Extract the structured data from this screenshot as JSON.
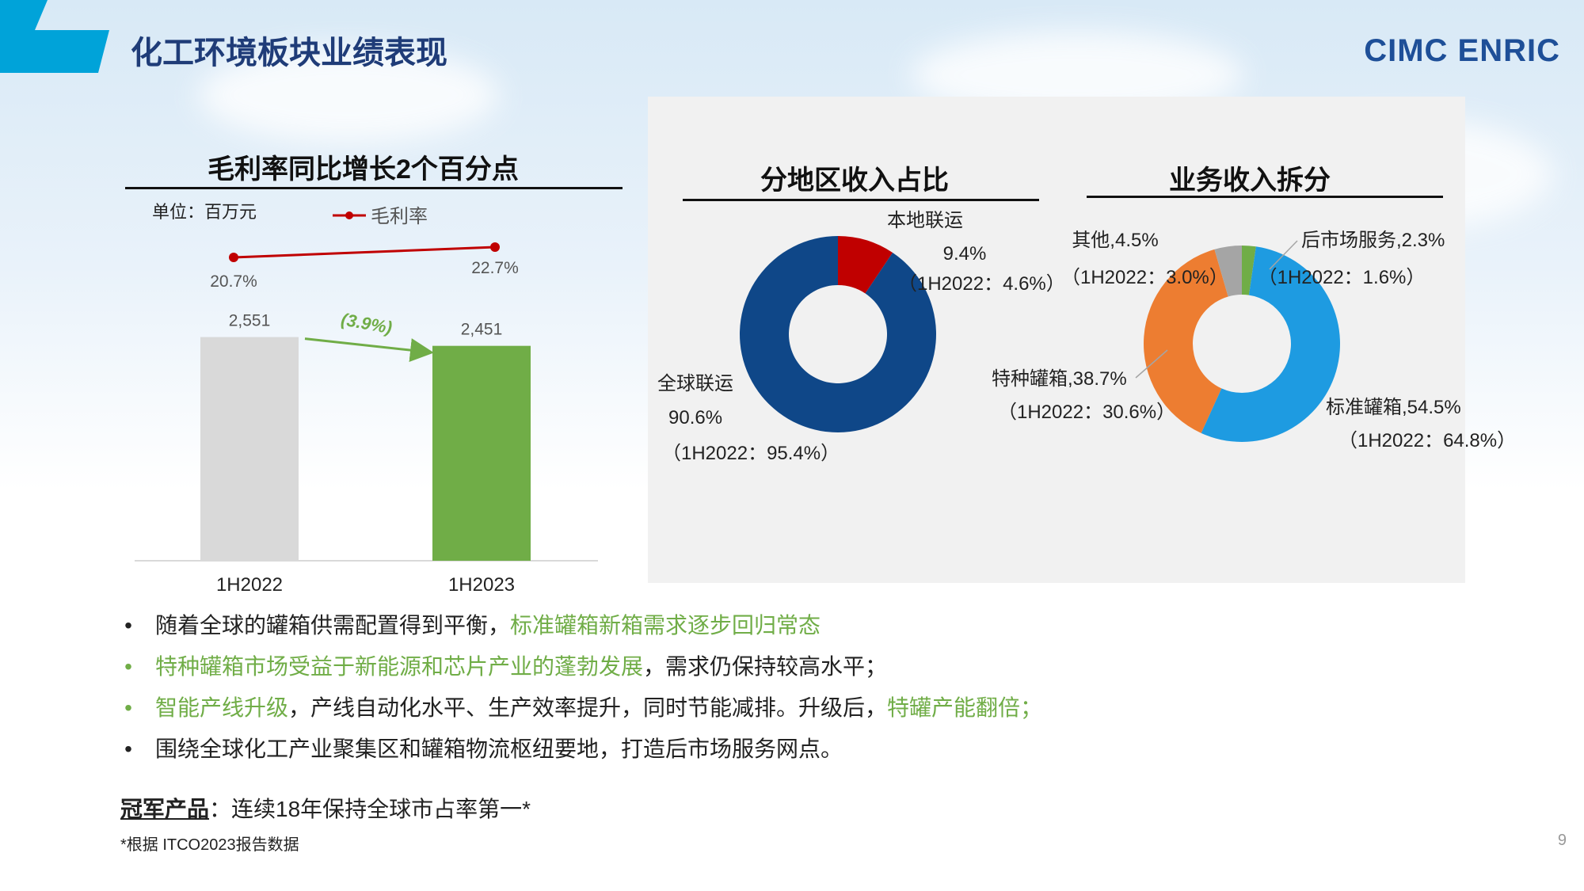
{
  "header": {
    "title": "化工环境板块业绩表现",
    "logo_text": "CIMC ENRIC",
    "accent_color": "#00a3d9",
    "title_color": "#1f3c78"
  },
  "left_chart": {
    "heading": "毛利率同比增长2个百分点",
    "unit_label": "单位：百万元",
    "change_label": "(3.9%)"
  },
  "right_panel": {
    "region_heading": "分地区收入占比",
    "business_heading": "业务收入拆分"
  },
  "chart_data": [
    {
      "type": "bar",
      "categories": [
        "1H2022",
        "1H2023"
      ],
      "values": [
        2551,
        2451
      ],
      "value_labels": [
        "2,551",
        "2,451"
      ],
      "colors": [
        "#d9d9d9",
        "#70ad47"
      ],
      "ylim": [
        0,
        3000
      ]
    },
    {
      "type": "line",
      "categories": [
        "1H2022",
        "1H2023"
      ],
      "series": [
        {
          "name": "毛利率",
          "values": [
            20.7,
            22.7
          ],
          "value_labels": [
            "20.7%",
            "22.7%"
          ],
          "color": "#c00000"
        }
      ]
    },
    {
      "type": "pie",
      "style": "donut",
      "slices": [
        {
          "label": "本地联运",
          "value": 9.4,
          "value_label": "9.4%",
          "note": "（1H2022：4.6%）",
          "color": "#c00000"
        },
        {
          "label": "全球联运",
          "value": 90.6,
          "value_label": "90.6%",
          "note": "（1H2022：95.4%）",
          "color": "#0f4788"
        }
      ]
    },
    {
      "type": "pie",
      "style": "donut",
      "slices": [
        {
          "label": "后市场服务,2.3%",
          "value": 2.3,
          "note": "（1H2022：1.6%）",
          "color": "#70ad47"
        },
        {
          "label": "标准罐箱,54.5%",
          "value": 54.5,
          "note": "（1H2022：64.8%）",
          "color": "#1e9be1"
        },
        {
          "label": "特种罐箱,38.7%",
          "value": 38.7,
          "note": "（1H2022：30.6%）",
          "color": "#ed7d31"
        },
        {
          "label": "其他,4.5%",
          "value": 4.5,
          "note": "（1H2022：3.0%）",
          "color": "#a5a5a5"
        }
      ]
    }
  ],
  "bullets": [
    {
      "segments": [
        {
          "text": "随着全球的罐箱供需配置得到平衡，",
          "green": false
        },
        {
          "text": "标准罐箱新箱需求逐步回归常态",
          "green": true
        }
      ],
      "dot_green": false
    },
    {
      "segments": [
        {
          "text": "特种罐箱市场受益于新能源和芯片产业的蓬勃发展",
          "green": true
        },
        {
          "text": "，需求仍保持较高水平；",
          "green": false
        }
      ],
      "dot_green": true
    },
    {
      "segments": [
        {
          "text": "智能产线升级",
          "green": true
        },
        {
          "text": "，产线自动化水平、生产效率提升，同时节能减排。升级后，",
          "green": false
        },
        {
          "text": "特罐产能翻倍；",
          "green": true
        }
      ],
      "dot_green": true
    },
    {
      "segments": [
        {
          "text": "围绕全球化工产业聚集区和罐箱物流枢纽要地，打造后市场服务网点。",
          "green": false
        }
      ],
      "dot_green": false
    }
  ],
  "footer": {
    "champion_label": "冠军产品",
    "champion_text": "：连续18年保持全球市占率第一*",
    "source_note": "*根据 ITCO2023报告数据",
    "page_number": "9"
  }
}
